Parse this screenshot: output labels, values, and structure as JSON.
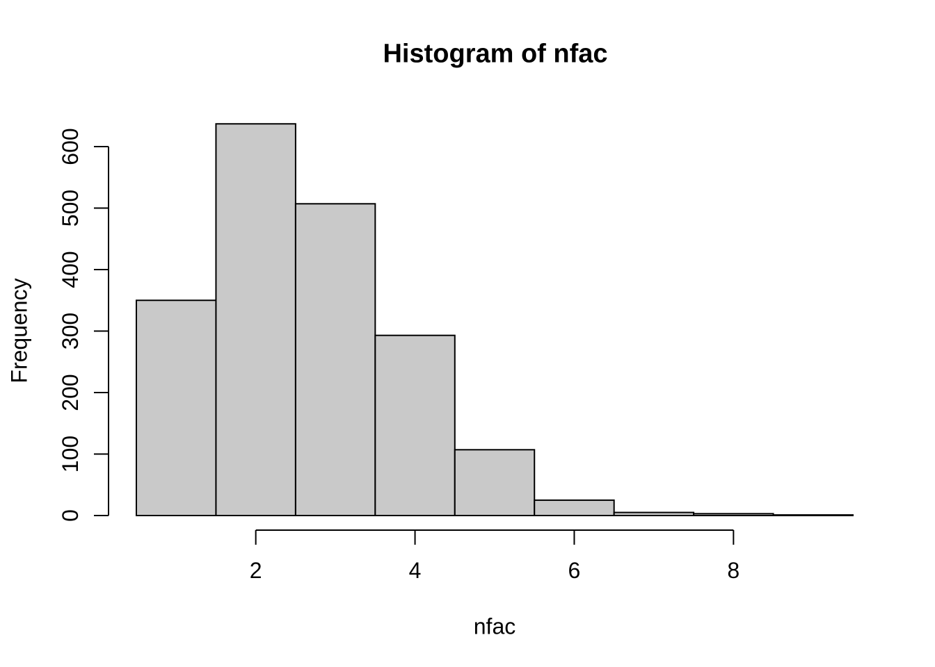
{
  "page": {
    "background": "#ffffff"
  },
  "chart_data": {
    "type": "bar",
    "subtype": "histogram",
    "title": "Histogram of nfac",
    "xlabel": "nfac",
    "ylabel": "Frequency",
    "bin_edges": [
      0.5,
      1.5,
      2.5,
      3.5,
      4.5,
      5.5,
      6.5,
      7.5,
      8.5,
      9.5
    ],
    "counts": [
      350,
      637,
      507,
      293,
      107,
      25,
      5,
      3,
      1
    ],
    "x_ticks": [
      2,
      4,
      6,
      8
    ],
    "y_ticks": [
      0,
      100,
      200,
      300,
      400,
      500,
      600
    ],
    "xlim": [
      0.5,
      9.5
    ],
    "ylim": [
      0,
      600
    ],
    "grid": false,
    "legend_position": "none",
    "colors": {
      "bar_fill": "#c9c9c9",
      "bar_stroke": "#000000",
      "axis": "#000000",
      "text": "#000000"
    }
  }
}
